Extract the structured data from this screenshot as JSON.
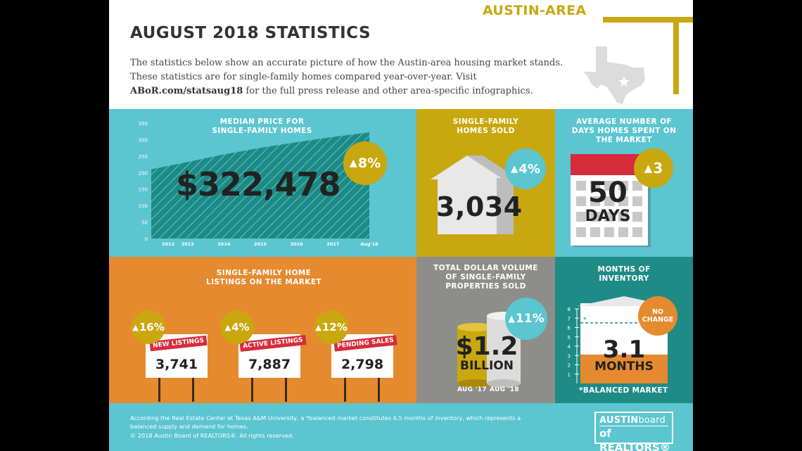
{
  "header": {
    "region": "AUSTIN-AREA",
    "title": "AUGUST 2018 STATISTICS",
    "intro_1": "The statistics below show an accurate picture of how the Austin-area housing market stands. These statistics are for single-family homes compared year-over-year. Visit ",
    "intro_link": "ABoR.com/statsaug18",
    "intro_2": " for the full press release and other area-specific infographics."
  },
  "median_price": {
    "title_1": "MEDIAN PRICE FOR",
    "title_2": "SINGLE-FAMILY HOMES",
    "value": "$322,478",
    "change": "8%",
    "chart_data": {
      "type": "area",
      "categories": [
        "2012",
        "2013",
        "2014",
        "2015",
        "2016",
        "2017",
        "Aug'18"
      ],
      "values": [
        210,
        232,
        255,
        275,
        292,
        308,
        322
      ],
      "ylim": [
        0,
        350
      ],
      "yticks": [
        "0",
        "50",
        "100",
        "150",
        "200",
        "250",
        "300",
        "350"
      ],
      "grid": false
    }
  },
  "homes_sold": {
    "title_1": "SINGLE-FAMILY",
    "title_2": "HOMES SOLD",
    "value": "3,034",
    "change": "4%"
  },
  "days_on_market": {
    "title_1": "AVERAGE NUMBER OF",
    "title_2": "DAYS HOMES SPENT ON",
    "title_3": "THE MARKET",
    "value": "50",
    "unit": "DAYS",
    "change": "3"
  },
  "listings": {
    "title_1": "SINGLE-FAMILY HOME",
    "title_2": "LISTINGS ON THE MARKET",
    "signs": [
      {
        "label": "NEW LISTINGS",
        "value": "3,741",
        "change": "16%"
      },
      {
        "label": "ACTIVE LISTINGS",
        "value": "7,887",
        "change": "4%"
      },
      {
        "label": "PENDING SALES",
        "value": "2,798",
        "change": "12%"
      }
    ]
  },
  "dollar_volume": {
    "title_1": "TOTAL DOLLAR VOLUME",
    "title_2": "OF SINGLE-FAMILY",
    "title_3": "PROPERTIES SOLD",
    "value": "$1.2",
    "unit": "BILLION",
    "change": "11%",
    "label_a": "AUG '17",
    "label_b": "AUG '18"
  },
  "inventory": {
    "title_1": "MONTHS OF",
    "title_2": "INVENTORY",
    "value": "3.1",
    "unit": "MONTHS",
    "badge_1": "NO",
    "badge_2": "CHANGE",
    "note": "*BALANCED MARKET",
    "scale": [
      "1",
      "2",
      "3",
      "4",
      "5",
      "6",
      "7",
      "8"
    ],
    "level_months": 3.1,
    "balanced_months": 6.5
  },
  "footer": {
    "note": "According the Real Estate Center at Texas A&M University, a *balanced market constitutes 6.5 months of inventory, which represents a balanced supply and demand for homes.",
    "copyright": "© 2018  Austin Board of REALTORS®. All rights reserved.",
    "logo_1a": "AUSTIN",
    "logo_1b": "board",
    "logo_2": "of REALTORS®"
  },
  "colors": {
    "teal": "#5bc5d0",
    "gold": "#c9a70f",
    "orange": "#e58a2e",
    "gray": "#8d8e89",
    "dark_teal": "#1f8b86",
    "red": "#d62b3b"
  }
}
